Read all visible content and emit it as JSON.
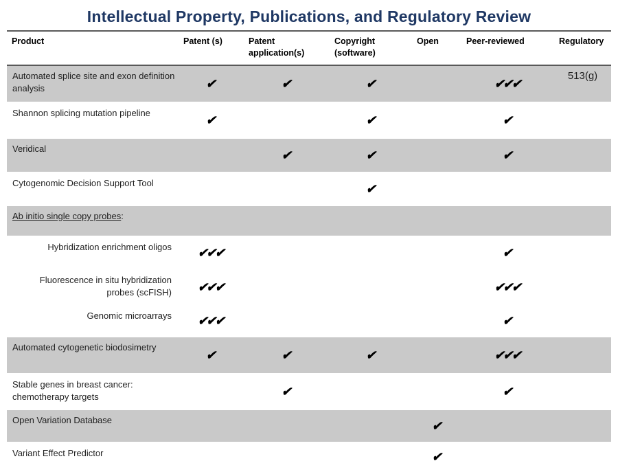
{
  "title": "Intellectual Property, Publications, and Regulatory Review",
  "colors": {
    "title_text": "#1F3864",
    "shaded_row": "#C9C9C9",
    "table_border": "#595959",
    "check_mark": "#000000"
  },
  "table": {
    "columns": [
      "Product",
      "Patent (s)",
      "Patent application(s)",
      "Copyright (software)",
      "Open",
      "Peer-reviewed",
      "Regulatory"
    ],
    "rows": [
      {
        "product": "Automated splice site and exon definition analysis",
        "patent": "✔",
        "patent_application": "✔",
        "copyright": "✔",
        "open": "",
        "peer_reviewed": "✔✔✔",
        "regulatory": "513(g)"
      },
      {
        "product": "Shannon splicing mutation pipeline",
        "patent": "✔",
        "patent_application": "",
        "copyright": "✔",
        "open": "",
        "peer_reviewed": "✔",
        "regulatory": ""
      },
      {
        "product": "Veridical",
        "patent": "",
        "patent_application": "✔",
        "copyright": "✔",
        "open": "",
        "peer_reviewed": "✔",
        "regulatory": ""
      },
      {
        "product": "Cytogenomic Decision Support Tool",
        "patent": "",
        "patent_application": "",
        "copyright": "✔",
        "open": "",
        "peer_reviewed": "",
        "regulatory": ""
      },
      {
        "product": "Ab initio single copy probes",
        "suffix": ":",
        "patent": "",
        "patent_application": "",
        "copyright": "",
        "open": "",
        "peer_reviewed": "",
        "regulatory": ""
      },
      {
        "product": "Hybridization enrichment oligos",
        "patent": "✔✔✔",
        "patent_application": "",
        "copyright": "",
        "open": "",
        "peer_reviewed": "✔",
        "regulatory": ""
      },
      {
        "product": "Fluorescence in situ hybridization probes (scFISH)",
        "patent": "✔✔✔",
        "patent_application": "",
        "copyright": "",
        "open": "",
        "peer_reviewed": "✔✔✔",
        "regulatory": ""
      },
      {
        "product": "Genomic microarrays",
        "patent": "✔✔✔",
        "patent_application": "",
        "copyright": "",
        "open": "",
        "peer_reviewed": "✔",
        "regulatory": ""
      },
      {
        "product": "Automated cytogenetic biodosimetry",
        "patent": "✔",
        "patent_application": "✔",
        "copyright": "✔",
        "open": "",
        "peer_reviewed": "✔✔✔",
        "regulatory": ""
      },
      {
        "product": "Stable genes in breast cancer: chemotherapy targets",
        "patent": "",
        "patent_application": "✔",
        "copyright": "",
        "open": "",
        "peer_reviewed": "✔",
        "regulatory": ""
      },
      {
        "product": "Open Variation Database",
        "patent": "",
        "patent_application": "",
        "copyright": "",
        "open": "✔",
        "peer_reviewed": "",
        "regulatory": ""
      },
      {
        "product": "Variant Effect Predictor",
        "patent": "",
        "patent_application": "",
        "copyright": "",
        "open": "✔",
        "peer_reviewed": "",
        "regulatory": ""
      }
    ]
  }
}
